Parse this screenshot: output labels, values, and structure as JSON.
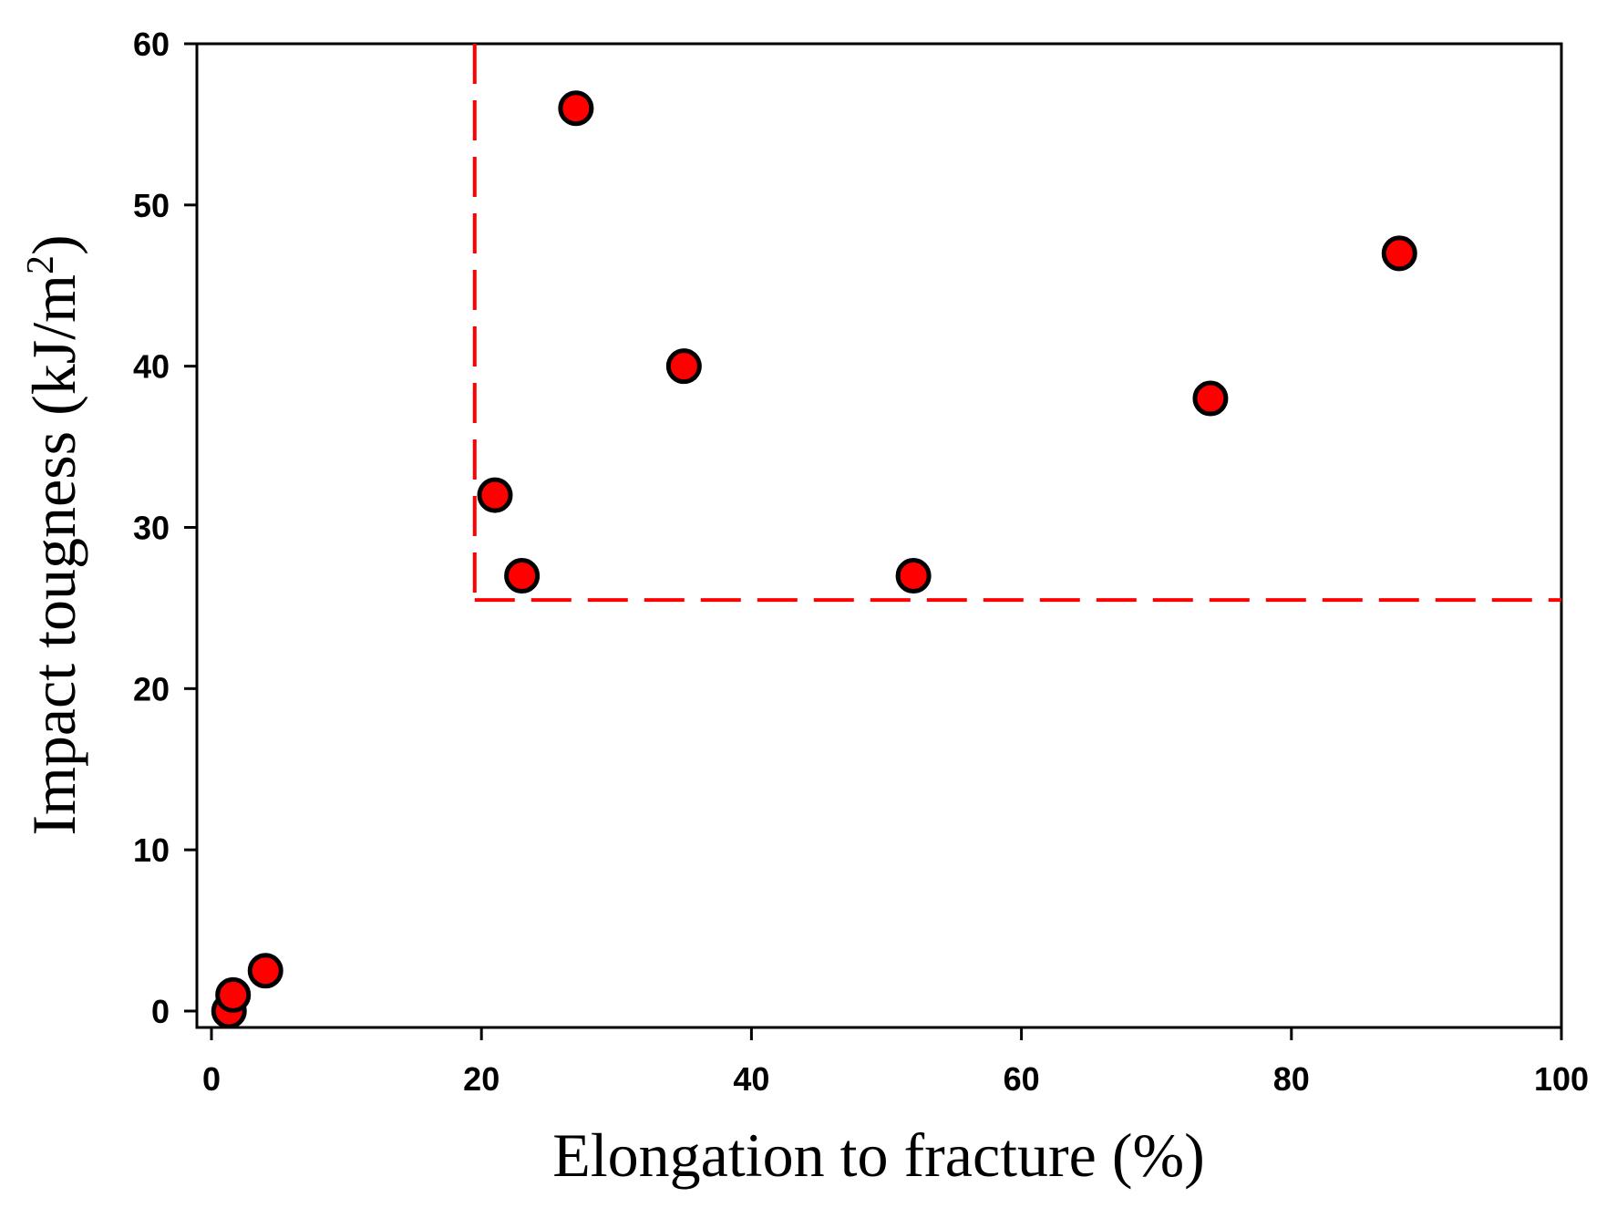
{
  "chart_data": {
    "type": "scatter",
    "title": "",
    "xlabel": "Elongation to fracture (%)",
    "ylabel_main": "Impact tougness (kJ/m",
    "ylabel_sup": "2",
    "ylabel_close": ")",
    "xlim": [
      -2,
      100
    ],
    "ylim": [
      -2,
      60
    ],
    "x_ticks": [
      0,
      20,
      40,
      60,
      80,
      100
    ],
    "x_tick_labels": [
      "0",
      "20",
      "40",
      "60",
      "80",
      "100"
    ],
    "y_ticks": [
      0,
      10,
      20,
      30,
      40,
      50,
      60
    ],
    "y_tick_labels": [
      "0",
      "10",
      "20",
      "30",
      "40",
      "50",
      "60"
    ],
    "grid": false,
    "legend": "none",
    "marker_color": "#ff0000",
    "marker_edge_color": "#000000",
    "guide_color": "#ff0000",
    "points": [
      {
        "x": 1.3,
        "y": 0
      },
      {
        "x": 1.6,
        "y": 1.0
      },
      {
        "x": 4.0,
        "y": 2.5
      },
      {
        "x": 21,
        "y": 32
      },
      {
        "x": 23,
        "y": 27
      },
      {
        "x": 27,
        "y": 56
      },
      {
        "x": 35,
        "y": 40
      },
      {
        "x": 52,
        "y": 27
      },
      {
        "x": 74,
        "y": 38
      },
      {
        "x": 88,
        "y": 47
      }
    ],
    "guide_lines": {
      "vertical_x": 19.5,
      "horizontal_y": 25.5
    }
  }
}
